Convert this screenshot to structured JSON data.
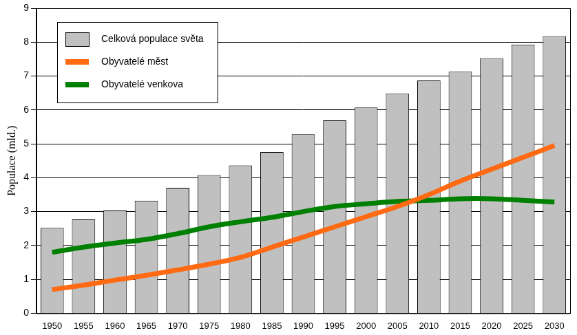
{
  "chart_data": {
    "type": "bar",
    "categories": [
      "1950",
      "1955",
      "1960",
      "1965",
      "1970",
      "1975",
      "1980",
      "1985",
      "1990",
      "1995",
      "2000",
      "2005",
      "2010",
      "2015",
      "2020",
      "2025",
      "2030"
    ],
    "series": [
      {
        "name": "Celková populace světa",
        "type": "bar",
        "color": "#c0c0c0",
        "values": [
          2.52,
          2.77,
          3.03,
          3.32,
          3.7,
          4.08,
          4.36,
          4.76,
          5.28,
          5.69,
          6.07,
          6.48,
          6.87,
          7.13,
          7.53,
          7.93,
          8.18
        ]
      },
      {
        "name": "Obyvatelé měst",
        "type": "line",
        "color": "#ff6a13",
        "values": [
          0.7,
          0.83,
          0.98,
          1.12,
          1.28,
          1.45,
          1.65,
          1.95,
          2.25,
          2.55,
          2.85,
          3.15,
          3.5,
          3.9,
          4.25,
          4.6,
          4.95
        ]
      },
      {
        "name": "Obyvatelé venkova",
        "type": "line",
        "color": "#008000",
        "values": [
          1.8,
          1.95,
          2.07,
          2.18,
          2.35,
          2.55,
          2.7,
          2.83,
          3.0,
          3.15,
          3.23,
          3.3,
          3.33,
          3.38,
          3.38,
          3.33,
          3.28
        ]
      }
    ],
    "y_label": "Populace (mld.)",
    "ylim": [
      0,
      9
    ],
    "yticks": [
      0,
      1,
      2,
      3,
      4,
      5,
      6,
      7,
      8,
      9
    ],
    "grid": true,
    "legend": "top-left"
  }
}
